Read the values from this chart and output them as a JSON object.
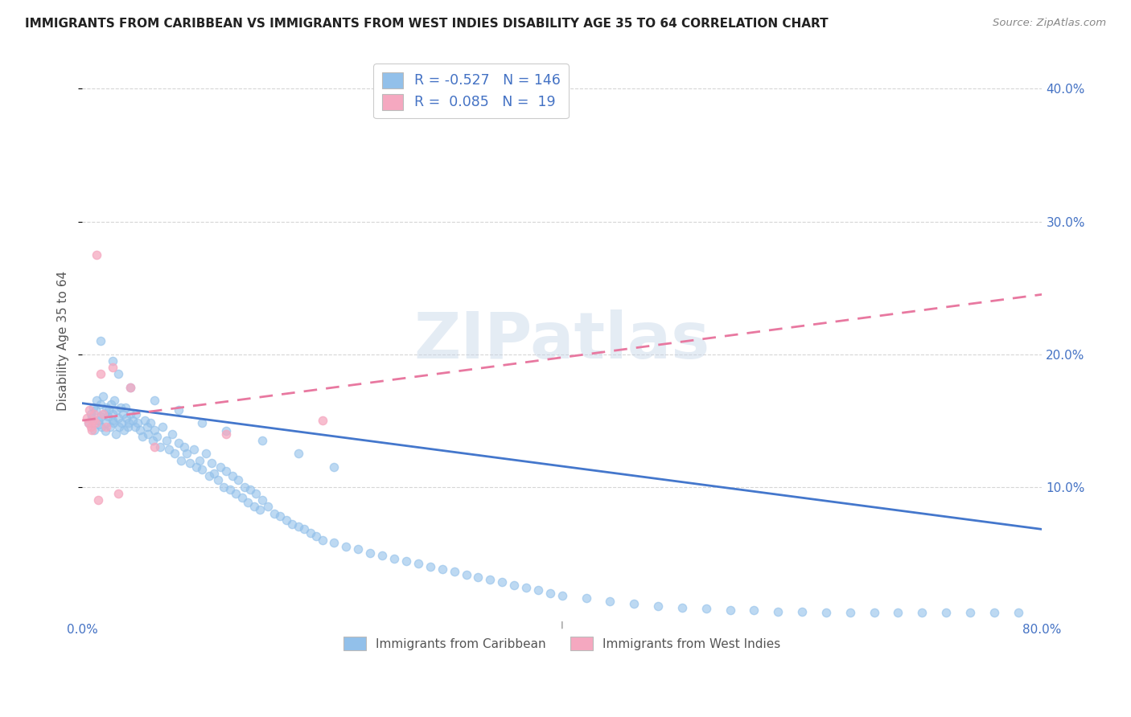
{
  "title": "IMMIGRANTS FROM CARIBBEAN VS IMMIGRANTS FROM WEST INDIES DISABILITY AGE 35 TO 64 CORRELATION CHART",
  "source": "Source: ZipAtlas.com",
  "ylabel": "Disability Age 35 to 64",
  "x_min": 0.0,
  "x_max": 0.8,
  "y_min": 0.0,
  "y_max": 0.42,
  "y_tick_positions": [
    0.1,
    0.2,
    0.3,
    0.4
  ],
  "y_tick_labels": [
    "10.0%",
    "20.0%",
    "30.0%",
    "40.0%"
  ],
  "legend_blue_r": "-0.527",
  "legend_blue_n": "146",
  "legend_pink_r": "0.085",
  "legend_pink_n": "19",
  "legend_label_blue": "Immigrants from Caribbean",
  "legend_label_pink": "Immigrants from West Indies",
  "blue_color": "#92C0EA",
  "pink_color": "#F5A8C0",
  "blue_line_color": "#4477CC",
  "pink_line_color": "#E878A0",
  "watermark": "ZIPatlas",
  "background_color": "#FFFFFF",
  "blue_trendline_x": [
    0.0,
    0.8
  ],
  "blue_trendline_y": [
    0.163,
    0.068
  ],
  "pink_trendline_x": [
    0.0,
    0.8
  ],
  "pink_trendline_y": [
    0.15,
    0.245
  ],
  "blue_scatter_x": [
    0.005,
    0.007,
    0.008,
    0.009,
    0.01,
    0.011,
    0.012,
    0.013,
    0.014,
    0.015,
    0.015,
    0.016,
    0.017,
    0.018,
    0.019,
    0.02,
    0.02,
    0.021,
    0.022,
    0.023,
    0.024,
    0.025,
    0.025,
    0.026,
    0.027,
    0.028,
    0.029,
    0.03,
    0.031,
    0.032,
    0.033,
    0.034,
    0.035,
    0.036,
    0.037,
    0.038,
    0.039,
    0.04,
    0.042,
    0.044,
    0.045,
    0.046,
    0.048,
    0.05,
    0.052,
    0.054,
    0.055,
    0.057,
    0.059,
    0.06,
    0.062,
    0.065,
    0.067,
    0.07,
    0.072,
    0.075,
    0.077,
    0.08,
    0.082,
    0.085,
    0.087,
    0.09,
    0.093,
    0.095,
    0.098,
    0.1,
    0.103,
    0.106,
    0.108,
    0.11,
    0.113,
    0.115,
    0.118,
    0.12,
    0.123,
    0.125,
    0.128,
    0.13,
    0.133,
    0.135,
    0.138,
    0.14,
    0.143,
    0.145,
    0.148,
    0.15,
    0.155,
    0.16,
    0.165,
    0.17,
    0.175,
    0.18,
    0.185,
    0.19,
    0.195,
    0.2,
    0.21,
    0.22,
    0.23,
    0.24,
    0.25,
    0.26,
    0.27,
    0.28,
    0.29,
    0.3,
    0.31,
    0.32,
    0.33,
    0.34,
    0.35,
    0.36,
    0.37,
    0.38,
    0.39,
    0.4,
    0.42,
    0.44,
    0.46,
    0.48,
    0.5,
    0.52,
    0.54,
    0.56,
    0.58,
    0.6,
    0.62,
    0.64,
    0.66,
    0.68,
    0.7,
    0.72,
    0.74,
    0.76,
    0.78,
    0.015,
    0.025,
    0.03,
    0.04,
    0.06,
    0.08,
    0.1,
    0.12,
    0.15,
    0.18,
    0.21
  ],
  "blue_scatter_y": [
    0.148,
    0.155,
    0.152,
    0.16,
    0.143,
    0.158,
    0.165,
    0.15,
    0.147,
    0.153,
    0.162,
    0.145,
    0.168,
    0.155,
    0.142,
    0.16,
    0.148,
    0.153,
    0.158,
    0.145,
    0.162,
    0.15,
    0.155,
    0.148,
    0.165,
    0.14,
    0.158,
    0.152,
    0.145,
    0.16,
    0.148,
    0.155,
    0.143,
    0.16,
    0.152,
    0.145,
    0.148,
    0.155,
    0.15,
    0.145,
    0.155,
    0.148,
    0.143,
    0.138,
    0.15,
    0.145,
    0.14,
    0.148,
    0.135,
    0.143,
    0.138,
    0.13,
    0.145,
    0.135,
    0.128,
    0.14,
    0.125,
    0.133,
    0.12,
    0.13,
    0.125,
    0.118,
    0.128,
    0.115,
    0.12,
    0.113,
    0.125,
    0.108,
    0.118,
    0.11,
    0.105,
    0.115,
    0.1,
    0.112,
    0.098,
    0.108,
    0.095,
    0.105,
    0.092,
    0.1,
    0.088,
    0.098,
    0.085,
    0.095,
    0.083,
    0.09,
    0.085,
    0.08,
    0.078,
    0.075,
    0.072,
    0.07,
    0.068,
    0.065,
    0.063,
    0.06,
    0.058,
    0.055,
    0.053,
    0.05,
    0.048,
    0.046,
    0.044,
    0.042,
    0.04,
    0.038,
    0.036,
    0.034,
    0.032,
    0.03,
    0.028,
    0.026,
    0.024,
    0.022,
    0.02,
    0.018,
    0.016,
    0.014,
    0.012,
    0.01,
    0.009,
    0.008,
    0.007,
    0.007,
    0.006,
    0.006,
    0.005,
    0.005,
    0.005,
    0.005,
    0.005,
    0.005,
    0.005,
    0.005,
    0.005,
    0.21,
    0.195,
    0.185,
    0.175,
    0.165,
    0.158,
    0.148,
    0.142,
    0.135,
    0.125,
    0.115
  ],
  "pink_scatter_x": [
    0.004,
    0.005,
    0.006,
    0.007,
    0.008,
    0.009,
    0.01,
    0.011,
    0.012,
    0.013,
    0.015,
    0.017,
    0.02,
    0.025,
    0.03,
    0.04,
    0.06,
    0.12,
    0.2
  ],
  "pink_scatter_y": [
    0.152,
    0.148,
    0.158,
    0.145,
    0.143,
    0.15,
    0.155,
    0.148,
    0.275,
    0.09,
    0.185,
    0.155,
    0.145,
    0.19,
    0.095,
    0.175,
    0.13,
    0.14,
    0.15
  ]
}
